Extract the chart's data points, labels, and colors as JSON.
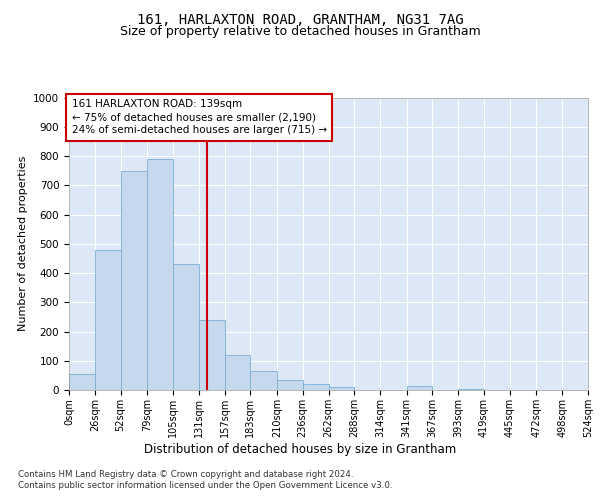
{
  "title": "161, HARLAXTON ROAD, GRANTHAM, NG31 7AG",
  "subtitle": "Size of property relative to detached houses in Grantham",
  "xlabel": "Distribution of detached houses by size in Grantham",
  "ylabel": "Number of detached properties",
  "footer_line1": "Contains HM Land Registry data © Crown copyright and database right 2024.",
  "footer_line2": "Contains public sector information licensed under the Open Government Licence v3.0.",
  "bar_color": "#c5d8ed",
  "bar_edge_color": "#7aafd4",
  "vline_color": "#cc0000",
  "vline_x": 139,
  "annotation_line1": "161 HARLAXTON ROAD: 139sqm",
  "annotation_line2": "← 75% of detached houses are smaller (2,190)",
  "annotation_line3": "24% of semi-detached houses are larger (715) →",
  "annotation_box_edgecolor": "#cc0000",
  "bins": [
    0,
    26,
    52,
    79,
    105,
    131,
    157,
    183,
    210,
    236,
    262,
    288,
    314,
    341,
    367,
    393,
    419,
    445,
    472,
    498,
    524
  ],
  "counts": [
    55,
    480,
    750,
    790,
    430,
    240,
    120,
    65,
    35,
    20,
    10,
    0,
    0,
    15,
    0,
    5,
    0,
    0,
    0,
    0
  ],
  "ylim": [
    0,
    1000
  ],
  "yticks": [
    0,
    100,
    200,
    300,
    400,
    500,
    600,
    700,
    800,
    900,
    1000
  ],
  "bg_color": "#dce8f5",
  "grid_color": "#ffffff",
  "title_fontsize": 10,
  "subtitle_fontsize": 9,
  "ylabel_fontsize": 8,
  "tick_fontsize": 7.5,
  "xtick_fontsize": 7
}
